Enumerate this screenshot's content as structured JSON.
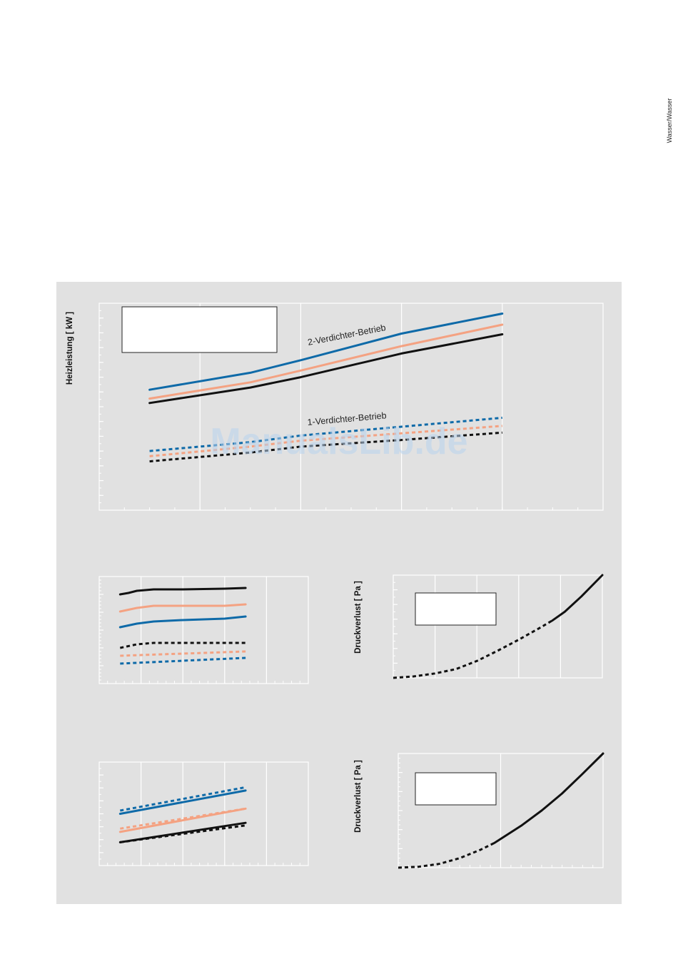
{
  "side_tab": {
    "label": "Wasser/Wasser"
  },
  "watermark": "ManualsLib.de",
  "colors": {
    "panel": "#e1e1e1",
    "blue": "#0e6aa8",
    "salmon": "#f4a282",
    "black": "#111111",
    "grid": "#ffffff"
  },
  "chart_data": [
    {
      "type": "line",
      "ylabel": "Heizleistung [ kW ]",
      "xlim": [
        -20,
        30
      ],
      "ylim": [
        0,
        28
      ],
      "annotations": [
        "2-Verdichter-Betrieb",
        "1-Verdichter-Betrieb"
      ],
      "series": [
        {
          "color": "blue",
          "dashed": false,
          "x": [
            -15,
            -5,
            0,
            10,
            20
          ],
          "y": [
            16.3,
            18.6,
            20.3,
            23.9,
            26.6
          ]
        },
        {
          "color": "salmon",
          "dashed": false,
          "x": [
            -15,
            -5,
            0,
            10,
            20
          ],
          "y": [
            15.1,
            17.3,
            18.9,
            22.2,
            25.1
          ]
        },
        {
          "color": "black",
          "dashed": false,
          "x": [
            -15,
            -5,
            0,
            10,
            20
          ],
          "y": [
            14.5,
            16.6,
            18.0,
            21.2,
            23.8
          ]
        },
        {
          "color": "blue",
          "dashed": true,
          "x": [
            -15,
            -5,
            0,
            10,
            20
          ],
          "y": [
            8.0,
            9.2,
            10.1,
            11.3,
            12.5
          ]
        },
        {
          "color": "salmon",
          "dashed": true,
          "x": [
            -15,
            -5,
            0,
            10,
            20
          ],
          "y": [
            7.3,
            8.6,
            9.4,
            10.4,
            11.4
          ]
        },
        {
          "color": "black",
          "dashed": true,
          "x": [
            -15,
            -5,
            0,
            10,
            20
          ],
          "y": [
            6.6,
            7.8,
            8.6,
            9.5,
            10.5
          ]
        }
      ]
    },
    {
      "type": "line",
      "xlim": [
        -20,
        30
      ],
      "ylim": [
        0,
        15
      ],
      "series": [
        {
          "color": "black",
          "dashed": false,
          "x": [
            -15,
            -13,
            -11,
            -7,
            0,
            10,
            15
          ],
          "y": [
            12.5,
            12.7,
            13.0,
            13.2,
            13.2,
            13.3,
            13.4
          ]
        },
        {
          "color": "salmon",
          "dashed": false,
          "x": [
            -15,
            -11,
            -7,
            0,
            10,
            15
          ],
          "y": [
            10.1,
            10.6,
            10.9,
            10.9,
            10.9,
            11.1
          ]
        },
        {
          "color": "blue",
          "dashed": false,
          "x": [
            -15,
            -11,
            -7,
            0,
            10,
            15
          ],
          "y": [
            7.9,
            8.4,
            8.7,
            8.9,
            9.1,
            9.4
          ]
        },
        {
          "color": "black",
          "dashed": true,
          "x": [
            -15,
            -11,
            -7,
            0,
            15
          ],
          "y": [
            5.0,
            5.5,
            5.7,
            5.7,
            5.7
          ]
        },
        {
          "color": "salmon",
          "dashed": true,
          "x": [
            -15,
            0,
            15
          ],
          "y": [
            3.9,
            4.2,
            4.5
          ]
        },
        {
          "color": "blue",
          "dashed": true,
          "x": [
            -15,
            0,
            15
          ],
          "y": [
            2.8,
            3.2,
            3.6
          ]
        }
      ]
    },
    {
      "type": "line",
      "ylabel": "Druckverlust [ Pa ]",
      "xlim": [
        0,
        5
      ],
      "ylim": [
        0,
        140
      ],
      "series": [
        {
          "color": "black",
          "dashed": true,
          "x": [
            0,
            0.5,
            1,
            1.5,
            2,
            2.5,
            3,
            3.5,
            3.8
          ],
          "y": [
            0,
            2,
            6,
            12,
            23,
            37,
            52,
            68,
            78
          ]
        },
        {
          "color": "black",
          "dashed": false,
          "x": [
            3.8,
            4.1,
            4.5,
            5.0
          ],
          "y": [
            78,
            90,
            111,
            140
          ]
        }
      ]
    },
    {
      "type": "line",
      "xlim": [
        -20,
        30
      ],
      "ylim": [
        0,
        16
      ],
      "series": [
        {
          "color": "blue",
          "dashed": true,
          "x": [
            -15,
            15
          ],
          "y": [
            8.5,
            12.1
          ]
        },
        {
          "color": "blue",
          "dashed": false,
          "x": [
            -15,
            15
          ],
          "y": [
            8.0,
            11.6
          ]
        },
        {
          "color": "salmon",
          "dashed": true,
          "x": [
            -15,
            15
          ],
          "y": [
            5.7,
            8.8
          ]
        },
        {
          "color": "salmon",
          "dashed": false,
          "x": [
            -15,
            15
          ],
          "y": [
            5.2,
            8.8
          ]
        },
        {
          "color": "black",
          "dashed": false,
          "x": [
            -15,
            15
          ],
          "y": [
            3.6,
            6.6
          ]
        },
        {
          "color": "black",
          "dashed": true,
          "x": [
            -15,
            15
          ],
          "y": [
            3.6,
            6.2
          ]
        }
      ]
    },
    {
      "type": "line",
      "ylabel": "Druckverlust [ Pa ]",
      "xlim": [
        0,
        10
      ],
      "ylim": [
        0,
        180
      ],
      "series": [
        {
          "color": "black",
          "dashed": true,
          "x": [
            0,
            1,
            2,
            3,
            4,
            4.7
          ],
          "y": [
            0,
            1.5,
            6,
            15,
            28,
            39
          ]
        },
        {
          "color": "black",
          "dashed": false,
          "x": [
            4.7,
            6,
            7,
            8,
            9,
            10
          ],
          "y": [
            39,
            66,
            90,
            117,
            148,
            180
          ]
        }
      ]
    }
  ]
}
